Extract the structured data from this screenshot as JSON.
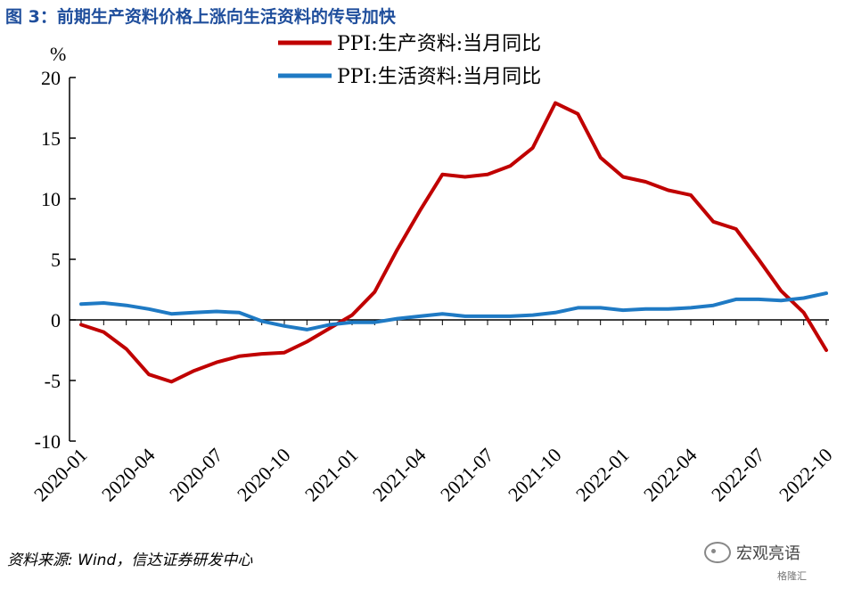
{
  "title": "图 3：前期生产资料价格上涨向生活资料的传导加快",
  "source": "资料来源: Wind，信达证券研发中心",
  "watermark": {
    "name": "宏观亮语",
    "sub": "格隆汇"
  },
  "colors": {
    "title": "#1f4e9c",
    "series1": "#c00000",
    "series2": "#1f7ac4"
  },
  "chart_data": {
    "type": "line",
    "ylabel": "%",
    "ylim": [
      -10,
      20
    ],
    "yticks": [
      20,
      15,
      10,
      5,
      0,
      -5,
      -10
    ],
    "x": [
      "2020-01",
      "2020-02",
      "2020-03",
      "2020-04",
      "2020-05",
      "2020-06",
      "2020-07",
      "2020-08",
      "2020-09",
      "2020-10",
      "2020-11",
      "2020-12",
      "2021-01",
      "2021-02",
      "2021-03",
      "2021-04",
      "2021-05",
      "2021-06",
      "2021-07",
      "2021-08",
      "2021-09",
      "2021-10",
      "2021-11",
      "2021-12",
      "2022-01",
      "2022-02",
      "2022-03",
      "2022-04",
      "2022-05",
      "2022-06",
      "2022-07",
      "2022-08",
      "2022-09",
      "2022-10"
    ],
    "xtick_labels": [
      "2020-01",
      "2020-04",
      "2020-07",
      "2020-10",
      "2021-01",
      "2021-04",
      "2021-07",
      "2021-10",
      "2022-01",
      "2022-04",
      "2022-07",
      "2022-10"
    ],
    "legend_position": "top-center",
    "series": [
      {
        "name": "PPI:生产资料:当月同比",
        "color": "#c00000",
        "values": [
          -0.4,
          -1.0,
          -2.4,
          -4.5,
          -5.1,
          -4.2,
          -3.5,
          -3.0,
          -2.8,
          -2.7,
          -1.8,
          -0.7,
          0.4,
          2.3,
          5.8,
          9.0,
          12.0,
          11.8,
          12.0,
          12.7,
          14.2,
          17.9,
          17.0,
          13.4,
          11.8,
          11.4,
          10.7,
          10.3,
          8.1,
          7.5,
          5.0,
          2.4,
          0.6,
          -2.5
        ]
      },
      {
        "name": "PPI:生活资料:当月同比",
        "color": "#1f7ac4",
        "values": [
          1.3,
          1.4,
          1.2,
          0.9,
          0.5,
          0.6,
          0.7,
          0.6,
          -0.1,
          -0.5,
          -0.8,
          -0.4,
          -0.2,
          -0.2,
          0.1,
          0.3,
          0.5,
          0.3,
          0.3,
          0.3,
          0.4,
          0.6,
          1.0,
          1.0,
          0.8,
          0.9,
          0.9,
          1.0,
          1.2,
          1.7,
          1.7,
          1.6,
          1.8,
          2.2
        ]
      }
    ]
  }
}
